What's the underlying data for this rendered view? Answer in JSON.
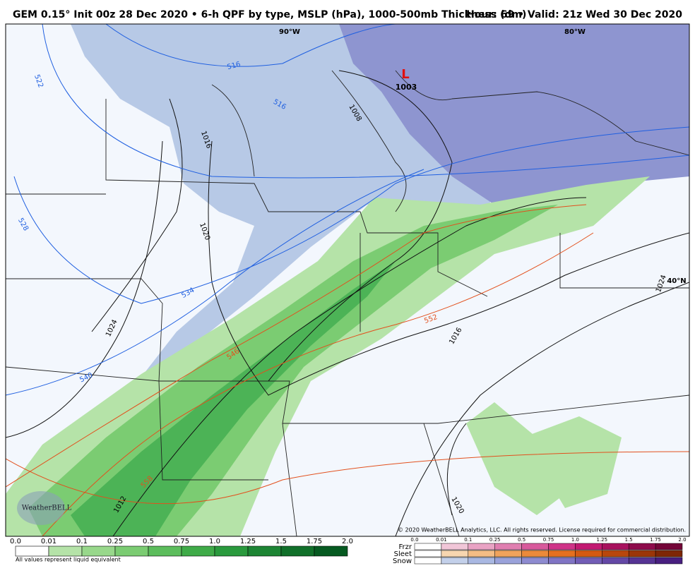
{
  "header": {
    "title": "GEM 0.15° Init 00z 28 Dec 2020 • 6-h QPF by type, MSLP (hPa), 1000-500mb Thickness (dm)",
    "info": "Hour: 69 • Valid: 21z Wed 30 Dec 2020"
  },
  "map": {
    "grid_labels": [
      "90°W",
      "80°W",
      "40°N"
    ],
    "low": {
      "symbol": "L",
      "pressure": "1003"
    },
    "isobar_labels": [
      "1008",
      "1016",
      "1020",
      "1024",
      "1012",
      "1016",
      "1020",
      "1024"
    ],
    "thickness_labels": [
      "516",
      "516",
      "522",
      "528",
      "534",
      "540",
      "546",
      "552",
      "558"
    ],
    "logo": "WeatherBELL",
    "copyright": "© 2020 WeatherBELL Analytics, LLC. All rights reserved. License required for commercial distribution."
  },
  "rain_legend": {
    "ticks": [
      "0.0",
      "0.01",
      "0.1",
      "0.25",
      "0.5",
      "0.75",
      "1.0",
      "1.25",
      "1.5",
      "1.75",
      "2.0"
    ],
    "note": "All values represent liquid equivalent"
  },
  "ptype_legend": {
    "rows": [
      "Frzr",
      "Sleet",
      "Snow"
    ],
    "ticks": [
      "0.0",
      "0.01",
      "0.1",
      "0.25",
      "0.5",
      "0.75",
      "1.0",
      "1.25",
      "1.5",
      "1.75",
      "2.0"
    ]
  }
}
